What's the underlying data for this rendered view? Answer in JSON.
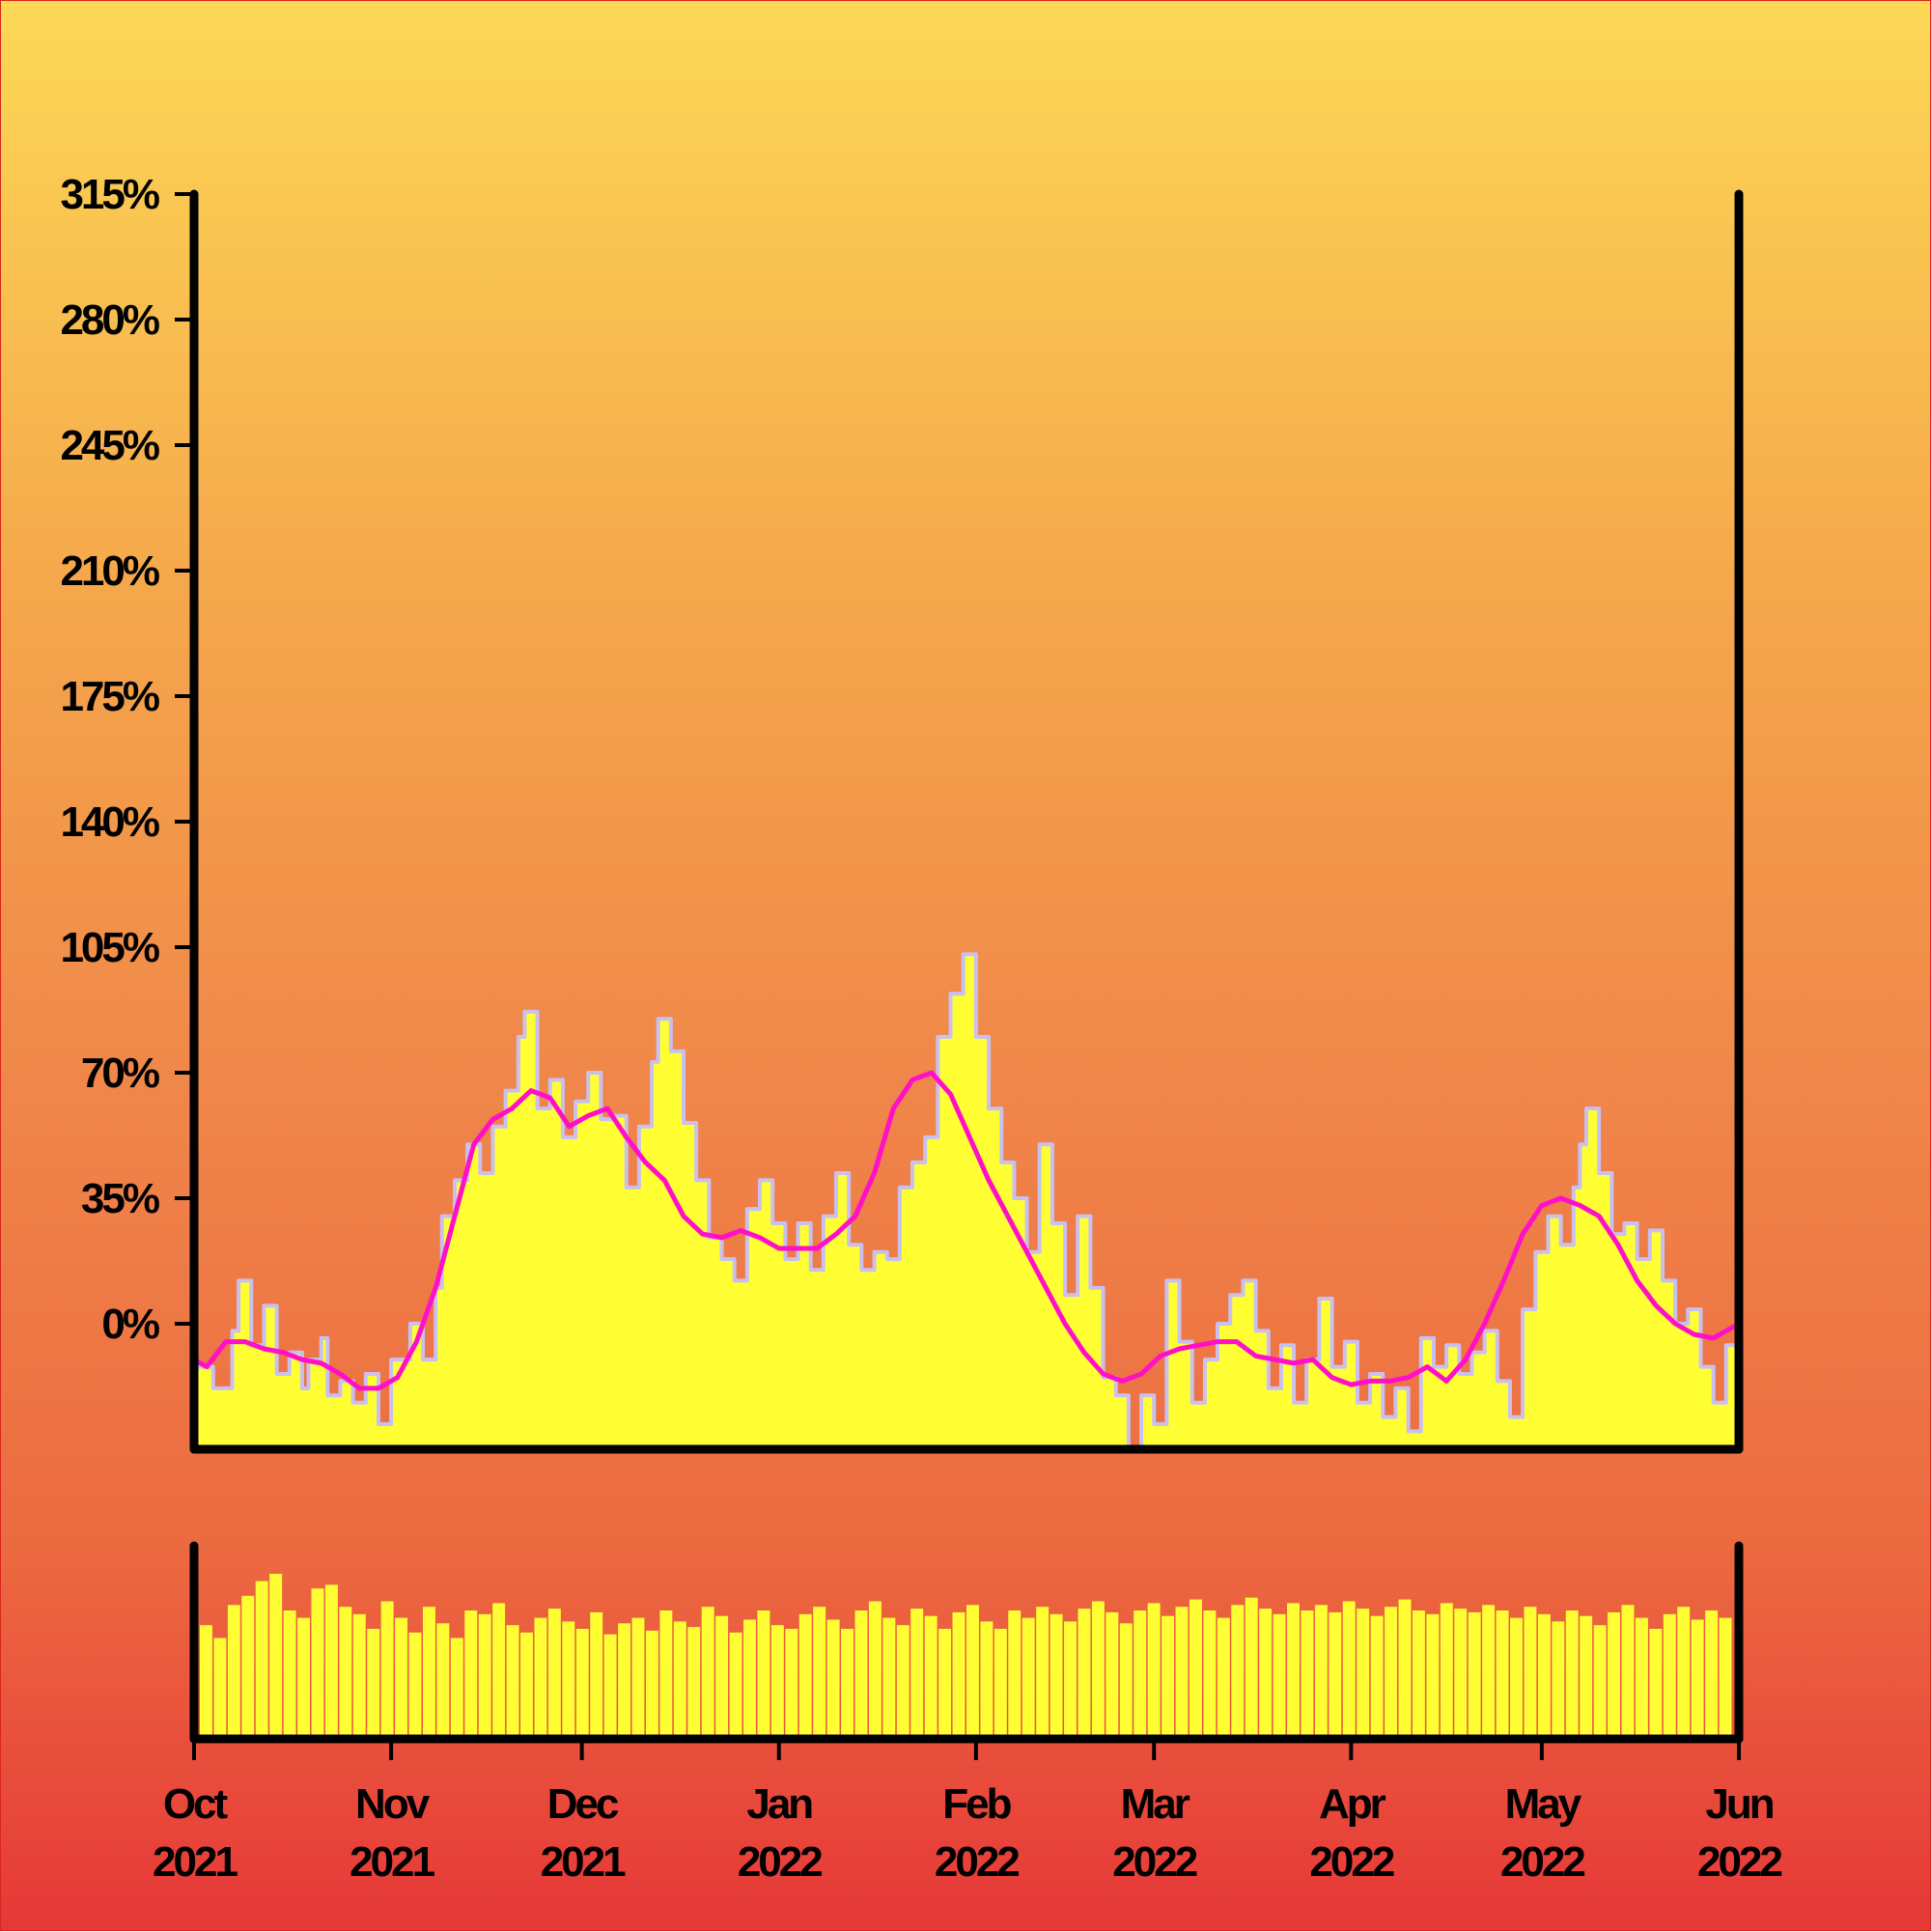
{
  "chart_data": [
    {
      "type": "area",
      "panel": "main",
      "title": "",
      "xlabel": "",
      "ylabel": "",
      "y_tick_labels": [
        "315%",
        "280%",
        "245%",
        "210%",
        "175%",
        "140%",
        "105%",
        "70%",
        "35%",
        "0%"
      ],
      "y_ticks": [
        315,
        280,
        245,
        210,
        175,
        140,
        105,
        70,
        35,
        0
      ],
      "ylim": [
        -35,
        315
      ],
      "x_range": [
        "2021-10-01",
        "2022-06-01"
      ],
      "grid": false,
      "series": [
        {
          "role": "daily-values",
          "style": "yellow filled step area with lavender outline",
          "fill": "#FFFF33",
          "outline": "#C9C0F0",
          "points": [
            [
              "2021-10-01",
              -12
            ],
            [
              "2021-10-04",
              -18
            ],
            [
              "2021-10-07",
              -2
            ],
            [
              "2021-10-08",
              12
            ],
            [
              "2021-10-10",
              -6
            ],
            [
              "2021-10-12",
              5
            ],
            [
              "2021-10-14",
              -14
            ],
            [
              "2021-10-16",
              -8
            ],
            [
              "2021-10-18",
              -18
            ],
            [
              "2021-10-19",
              -10
            ],
            [
              "2021-10-21",
              -4
            ],
            [
              "2021-10-22",
              -20
            ],
            [
              "2021-10-24",
              -16
            ],
            [
              "2021-10-26",
              -22
            ],
            [
              "2021-10-28",
              -14
            ],
            [
              "2021-10-30",
              -28
            ],
            [
              "2021-11-01",
              -10
            ],
            [
              "2021-11-04",
              0
            ],
            [
              "2021-11-06",
              -10
            ],
            [
              "2021-11-08",
              10
            ],
            [
              "2021-11-09",
              30
            ],
            [
              "2021-11-11",
              40
            ],
            [
              "2021-11-13",
              50
            ],
            [
              "2021-11-15",
              42
            ],
            [
              "2021-11-17",
              55
            ],
            [
              "2021-11-19",
              65
            ],
            [
              "2021-11-21",
              80
            ],
            [
              "2021-11-22",
              87
            ],
            [
              "2021-11-24",
              60
            ],
            [
              "2021-11-26",
              68
            ],
            [
              "2021-11-28",
              52
            ],
            [
              "2021-11-30",
              62
            ],
            [
              "2021-12-02",
              70
            ],
            [
              "2021-12-04",
              57
            ],
            [
              "2021-12-06",
              58
            ],
            [
              "2021-12-08",
              38
            ],
            [
              "2021-12-10",
              55
            ],
            [
              "2021-12-12",
              73
            ],
            [
              "2021-12-13",
              85
            ],
            [
              "2021-12-15",
              76
            ],
            [
              "2021-12-17",
              56
            ],
            [
              "2021-12-19",
              40
            ],
            [
              "2021-12-21",
              24
            ],
            [
              "2021-12-23",
              18
            ],
            [
              "2021-12-25",
              12
            ],
            [
              "2021-12-27",
              32
            ],
            [
              "2021-12-29",
              40
            ],
            [
              "2021-12-31",
              28
            ],
            [
              "2022-01-02",
              18
            ],
            [
              "2022-01-04",
              28
            ],
            [
              "2022-01-06",
              15
            ],
            [
              "2022-01-08",
              30
            ],
            [
              "2022-01-10",
              42
            ],
            [
              "2022-01-12",
              22
            ],
            [
              "2022-01-14",
              15
            ],
            [
              "2022-01-16",
              20
            ],
            [
              "2022-01-18",
              18
            ],
            [
              "2022-01-20",
              38
            ],
            [
              "2022-01-22",
              45
            ],
            [
              "2022-01-24",
              52
            ],
            [
              "2022-01-26",
              80
            ],
            [
              "2022-01-28",
              92
            ],
            [
              "2022-01-30",
              103
            ],
            [
              "2022-02-01",
              80
            ],
            [
              "2022-02-03",
              60
            ],
            [
              "2022-02-05",
              45
            ],
            [
              "2022-02-07",
              35
            ],
            [
              "2022-02-09",
              20
            ],
            [
              "2022-02-11",
              50
            ],
            [
              "2022-02-13",
              28
            ],
            [
              "2022-02-15",
              8
            ],
            [
              "2022-02-17",
              30
            ],
            [
              "2022-02-19",
              10
            ],
            [
              "2022-02-21",
              -15
            ],
            [
              "2022-02-23",
              -20
            ],
            [
              "2022-02-25",
              -35
            ],
            [
              "2022-02-27",
              -20
            ],
            [
              "2022-03-01",
              -28
            ],
            [
              "2022-03-03",
              12
            ],
            [
              "2022-03-05",
              -5
            ],
            [
              "2022-03-07",
              -22
            ],
            [
              "2022-03-09",
              -10
            ],
            [
              "2022-03-11",
              0
            ],
            [
              "2022-03-13",
              8
            ],
            [
              "2022-03-15",
              12
            ],
            [
              "2022-03-17",
              -2
            ],
            [
              "2022-03-19",
              -18
            ],
            [
              "2022-03-21",
              -6
            ],
            [
              "2022-03-23",
              -22
            ],
            [
              "2022-03-25",
              -10
            ],
            [
              "2022-03-27",
              7
            ],
            [
              "2022-03-29",
              -12
            ],
            [
              "2022-03-31",
              -5
            ],
            [
              "2022-04-02",
              -22
            ],
            [
              "2022-04-04",
              -14
            ],
            [
              "2022-04-06",
              -26
            ],
            [
              "2022-04-08",
              -18
            ],
            [
              "2022-04-10",
              -30
            ],
            [
              "2022-04-12",
              -4
            ],
            [
              "2022-04-14",
              -12
            ],
            [
              "2022-04-16",
              -6
            ],
            [
              "2022-04-18",
              -14
            ],
            [
              "2022-04-20",
              -8
            ],
            [
              "2022-04-22",
              -2
            ],
            [
              "2022-04-24",
              -16
            ],
            [
              "2022-04-26",
              -26
            ],
            [
              "2022-04-28",
              4
            ],
            [
              "2022-04-30",
              20
            ],
            [
              "2022-05-02",
              30
            ],
            [
              "2022-05-04",
              22
            ],
            [
              "2022-05-06",
              38
            ],
            [
              "2022-05-07",
              50
            ],
            [
              "2022-05-08",
              60
            ],
            [
              "2022-05-10",
              42
            ],
            [
              "2022-05-12",
              25
            ],
            [
              "2022-05-14",
              28
            ],
            [
              "2022-05-16",
              18
            ],
            [
              "2022-05-18",
              26
            ],
            [
              "2022-05-20",
              12
            ],
            [
              "2022-05-22",
              0
            ],
            [
              "2022-05-24",
              4
            ],
            [
              "2022-05-26",
              -12
            ],
            [
              "2022-05-28",
              -22
            ],
            [
              "2022-05-30",
              -6
            ],
            [
              "2022-06-01",
              -12
            ]
          ]
        },
        {
          "role": "moving-average",
          "style": "magenta line",
          "color": "#FF10C8",
          "points": [
            [
              "2021-10-01",
              -10
            ],
            [
              "2021-10-03",
              -12
            ],
            [
              "2021-10-06",
              -5
            ],
            [
              "2021-10-09",
              -5
            ],
            [
              "2021-10-12",
              -7
            ],
            [
              "2021-10-15",
              -8
            ],
            [
              "2021-10-18",
              -10
            ],
            [
              "2021-10-21",
              -11
            ],
            [
              "2021-10-24",
              -14
            ],
            [
              "2021-10-27",
              -18
            ],
            [
              "2021-10-30",
              -18
            ],
            [
              "2021-11-02",
              -15
            ],
            [
              "2021-11-05",
              -5
            ],
            [
              "2021-11-08",
              10
            ],
            [
              "2021-11-11",
              30
            ],
            [
              "2021-11-14",
              50
            ],
            [
              "2021-11-17",
              57
            ],
            [
              "2021-11-20",
              60
            ],
            [
              "2021-11-23",
              65
            ],
            [
              "2021-11-26",
              63
            ],
            [
              "2021-11-29",
              55
            ],
            [
              "2021-12-02",
              58
            ],
            [
              "2021-12-05",
              60
            ],
            [
              "2021-12-08",
              52
            ],
            [
              "2021-12-11",
              45
            ],
            [
              "2021-12-14",
              40
            ],
            [
              "2021-12-17",
              30
            ],
            [
              "2021-12-20",
              25
            ],
            [
              "2021-12-23",
              24
            ],
            [
              "2021-12-26",
              26
            ],
            [
              "2021-12-29",
              24
            ],
            [
              "2022-01-01",
              21
            ],
            [
              "2022-01-04",
              21
            ],
            [
              "2022-01-07",
              21
            ],
            [
              "2022-01-10",
              25
            ],
            [
              "2022-01-13",
              30
            ],
            [
              "2022-01-16",
              42
            ],
            [
              "2022-01-19",
              60
            ],
            [
              "2022-01-22",
              68
            ],
            [
              "2022-01-25",
              70
            ],
            [
              "2022-01-28",
              64
            ],
            [
              "2022-01-31",
              52
            ],
            [
              "2022-02-03",
              40
            ],
            [
              "2022-02-06",
              30
            ],
            [
              "2022-02-09",
              20
            ],
            [
              "2022-02-12",
              10
            ],
            [
              "2022-02-15",
              0
            ],
            [
              "2022-02-18",
              -8
            ],
            [
              "2022-02-21",
              -14
            ],
            [
              "2022-02-24",
              -16
            ],
            [
              "2022-02-27",
              -14
            ],
            [
              "2022-03-02",
              -9
            ],
            [
              "2022-03-05",
              -7
            ],
            [
              "2022-03-08",
              -6
            ],
            [
              "2022-03-11",
              -5
            ],
            [
              "2022-03-14",
              -5
            ],
            [
              "2022-03-17",
              -9
            ],
            [
              "2022-03-20",
              -10
            ],
            [
              "2022-03-23",
              -11
            ],
            [
              "2022-03-26",
              -10
            ],
            [
              "2022-03-29",
              -15
            ],
            [
              "2022-04-01",
              -17
            ],
            [
              "2022-04-04",
              -16
            ],
            [
              "2022-04-07",
              -16
            ],
            [
              "2022-04-10",
              -15
            ],
            [
              "2022-04-13",
              -12
            ],
            [
              "2022-04-16",
              -16
            ],
            [
              "2022-04-19",
              -10
            ],
            [
              "2022-04-22",
              0
            ],
            [
              "2022-04-25",
              12
            ],
            [
              "2022-04-28",
              25
            ],
            [
              "2022-05-01",
              33
            ],
            [
              "2022-05-04",
              35
            ],
            [
              "2022-05-07",
              33
            ],
            [
              "2022-05-10",
              30
            ],
            [
              "2022-05-13",
              22
            ],
            [
              "2022-05-16",
              12
            ],
            [
              "2022-05-19",
              5
            ],
            [
              "2022-05-22",
              0
            ],
            [
              "2022-05-25",
              -3
            ],
            [
              "2022-05-28",
              -4
            ],
            [
              "2022-06-01",
              0
            ]
          ]
        }
      ]
    },
    {
      "type": "bar",
      "panel": "volume",
      "title": "",
      "x_tick_labels": [
        [
          "Oct",
          "2021"
        ],
        [
          "Nov",
          "2021"
        ],
        [
          "Dec",
          "2021"
        ],
        [
          "Jan",
          "2022"
        ],
        [
          "Feb",
          "2022"
        ],
        [
          "Mar",
          "2022"
        ],
        [
          "Apr",
          "2022"
        ],
        [
          "May",
          "2022"
        ],
        [
          "Jun",
          "2022"
        ]
      ],
      "x_ticks": [
        "2021-10-01",
        "2021-11-01",
        "2021-12-01",
        "2022-01-01",
        "2022-02-01",
        "2022-03-01",
        "2022-04-01",
        "2022-05-01",
        "2022-06-01"
      ],
      "ylim": [
        0,
        1
      ],
      "bar_color": "#FFFF33",
      "grid": false,
      "series": [
        {
          "role": "daily-volume",
          "values": [
            0.62,
            0.55,
            0.73,
            0.78,
            0.86,
            0.9,
            0.7,
            0.66,
            0.82,
            0.84,
            0.72,
            0.68,
            0.6,
            0.75,
            0.66,
            0.58,
            0.72,
            0.63,
            0.55,
            0.7,
            0.68,
            0.74,
            0.62,
            0.58,
            0.66,
            0.71,
            0.64,
            0.6,
            0.69,
            0.57,
            0.63,
            0.66,
            0.59,
            0.7,
            0.64,
            0.61,
            0.72,
            0.67,
            0.58,
            0.65,
            0.7,
            0.62,
            0.6,
            0.68,
            0.72,
            0.65,
            0.6,
            0.7,
            0.75,
            0.66,
            0.62,
            0.71,
            0.67,
            0.6,
            0.69,
            0.73,
            0.64,
            0.6,
            0.7,
            0.66,
            0.72,
            0.68,
            0.64,
            0.71,
            0.75,
            0.69,
            0.63,
            0.7,
            0.74,
            0.67,
            0.72,
            0.76,
            0.7,
            0.66,
            0.73,
            0.77,
            0.71,
            0.68,
            0.74,
            0.7,
            0.73,
            0.69,
            0.75,
            0.71,
            0.67,
            0.72,
            0.76,
            0.7,
            0.68,
            0.74,
            0.71,
            0.69,
            0.73,
            0.7,
            0.66,
            0.72,
            0.68,
            0.64,
            0.7,
            0.67,
            0.62,
            0.69,
            0.73,
            0.66,
            0.6,
            0.68,
            0.72,
            0.65,
            0.7,
            0.66
          ]
        }
      ]
    }
  ]
}
